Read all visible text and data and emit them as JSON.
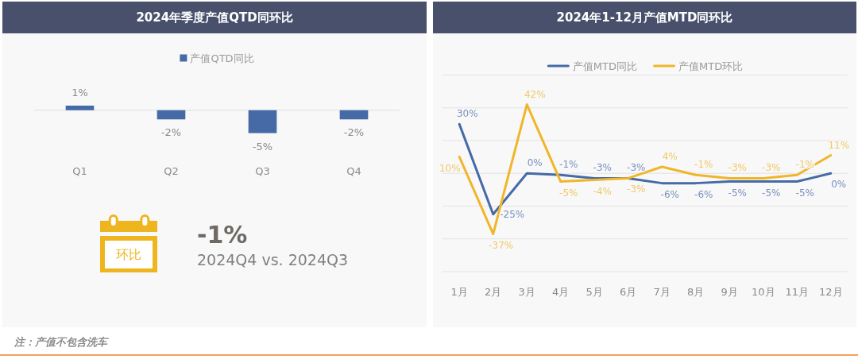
{
  "chart_data": [
    {
      "type": "bar",
      "title": "2024年季度产值QTD同环比",
      "categories": [
        "Q1",
        "Q2",
        "Q3",
        "Q4"
      ],
      "series": [
        {
          "name": "产值QTD同比",
          "color": "#466aa6",
          "values": [
            1,
            -2,
            -5,
            -2
          ],
          "value_labels": [
            "1%",
            "-2%",
            "-5%",
            "-2%"
          ]
        }
      ],
      "legend": "top",
      "annotations": [
        "注：产值不包含洗车"
      ]
    },
    {
      "type": "other",
      "title": "-1%",
      "subtitle": "2024Q4 vs. 2024Q3",
      "annotations": [
        "环比"
      ]
    },
    {
      "type": "line",
      "title": "2024年1-12月产值MTD同环比",
      "categories": [
        "1月",
        "2月",
        "3月",
        "4月",
        "5月",
        "6月",
        "7月",
        "8月",
        "9月",
        "10月",
        "11月",
        "12月"
      ],
      "series": [
        {
          "name": "产值MTD同比",
          "color": "#466aa6",
          "values": [
            30,
            -25,
            0,
            -1,
            -3,
            -3,
            -6,
            -6,
            -5,
            -5,
            -5,
            0
          ],
          "value_labels": [
            "30%",
            "-25%",
            "0%",
            "-1%",
            "-3%",
            "-3%",
            "-6%",
            "-6%",
            "-5%",
            "-5%",
            "-5%",
            "0%"
          ]
        },
        {
          "name": "产值MTD环比",
          "color": "#f0b62a",
          "values": [
            10,
            -37,
            42,
            -5,
            -4,
            -3,
            4,
            -1,
            -3,
            -3,
            -1,
            11
          ],
          "value_labels": [
            "10%",
            "-37%",
            "42%",
            "-5%",
            "-4%",
            "-3%",
            "4%",
            "-1%",
            "-3%",
            "-3%",
            "-1%",
            "11%"
          ]
        }
      ],
      "ylim": [
        -60,
        60
      ],
      "yticks": [
        {
          "value": -60,
          "label": null
        },
        {
          "value": -40,
          "label": null
        },
        {
          "value": -20,
          "label": null
        },
        {
          "value": 0,
          "label": null
        },
        {
          "value": 20,
          "label": null
        },
        {
          "value": 40,
          "label": null
        },
        {
          "value": 60,
          "label": null
        }
      ],
      "grid": "y",
      "tick_labels": "x",
      "legend": "top",
      "line_style": "solid"
    }
  ]
}
